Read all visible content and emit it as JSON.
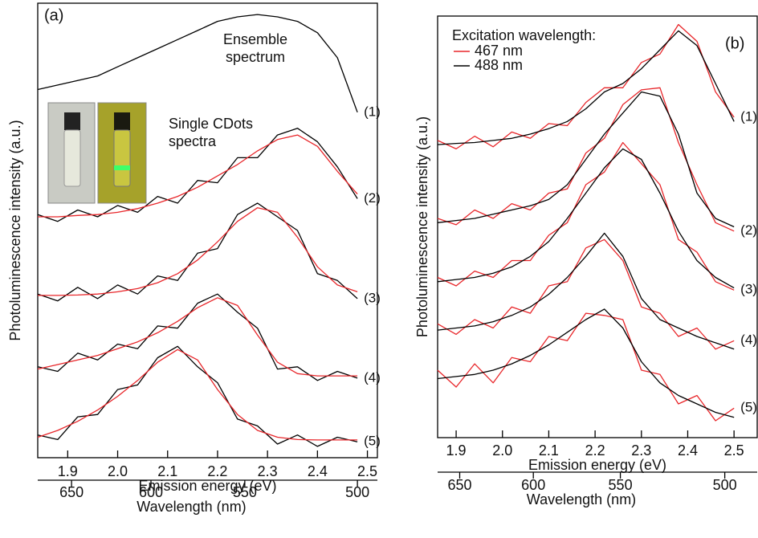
{
  "chart_data": [
    {
      "type": "line",
      "panel_label": "(a)",
      "ylabel": "Photoluminescence intensity (a.u.)",
      "xlabel": "Emission energy (eV)",
      "x2label": "Wavelength (nm)",
      "xlim": [
        1.84,
        2.52
      ],
      "xticks": [
        1.9,
        {
          "value": 2,
          "label": "2.0"
        },
        2.1,
        2.2,
        2.3,
        2.4,
        2.5
      ],
      "x2ticks": [
        650,
        600,
        550,
        500
      ],
      "ylim": [
        0,
        100
      ],
      "annotations": [
        {
          "lines": [
            "Ensemble",
            "spectrum"
          ]
        },
        {
          "lines": [
            "Single CDots",
            "spectra"
          ]
        }
      ],
      "x": [
        1.84,
        1.88,
        1.92,
        1.96,
        2.0,
        2.04,
        2.08,
        2.12,
        2.16,
        2.2,
        2.24,
        2.28,
        2.32,
        2.36,
        2.4,
        2.44,
        2.48
      ],
      "spectra": [
        {
          "label": "(1)",
          "series": [
            {
              "color": "#000000",
              "values": [
                81,
                82,
                83,
                84,
                86,
                88,
                90,
                92,
                94,
                96,
                97,
                97.5,
                97,
                96,
                93.5,
                88,
                76
              ]
            }
          ]
        },
        {
          "label": "(2)",
          "series": [
            {
              "color": "#000000",
              "values": [
                53.5,
                52,
                54.5,
                53,
                55.5,
                54,
                57.5,
                56,
                61,
                60.5,
                66,
                66,
                71,
                72.5,
                69.5,
                64,
                57
              ]
            },
            {
              "color": "#e8262a",
              "values": [
                53,
                53,
                53.3,
                53.5,
                54,
                54.8,
                56,
                57.5,
                59.5,
                62,
                64.5,
                67.5,
                70,
                71,
                68.5,
                63,
                58
              ]
            }
          ]
        },
        {
          "label": "(3)",
          "series": [
            {
              "color": "#000000",
              "values": [
                36,
                34.5,
                37.5,
                35,
                38,
                36,
                40,
                39,
                45,
                46,
                53.5,
                56,
                53,
                50,
                40.5,
                39,
                35
              ]
            },
            {
              "color": "#e8262a",
              "values": [
                35.7,
                35.7,
                35.8,
                36,
                36.5,
                37.2,
                38.5,
                40.5,
                43.5,
                47.5,
                52,
                55,
                54,
                48.5,
                42,
                38,
                36.5
              ]
            }
          ]
        },
        {
          "label": "(4)",
          "series": [
            {
              "color": "#000000",
              "values": [
                20,
                19,
                23,
                21.5,
                25,
                24,
                29,
                28.5,
                34,
                36,
                32,
                28.5,
                19.5,
                20,
                17,
                19,
                17.5
              ]
            },
            {
              "color": "#e8262a",
              "values": [
                19.5,
                20.5,
                21.5,
                22.5,
                24,
                25.5,
                27.5,
                30,
                33,
                35.2,
                33.5,
                27,
                21,
                18.5,
                18,
                18,
                18
              ]
            }
          ]
        },
        {
          "label": "(5)",
          "series": [
            {
              "color": "#000000",
              "values": [
                5,
                4,
                9,
                9.5,
                15,
                16,
                22,
                24.5,
                20,
                16.5,
                8.5,
                7,
                3,
                5,
                2.5,
                4.5,
                3.5
              ]
            },
            {
              "color": "#e8262a",
              "values": [
                4.5,
                6,
                8,
                10.5,
                13.5,
                17,
                21,
                23.8,
                21.5,
                15,
                9.5,
                6,
                4.5,
                4,
                3.9,
                3.9,
                3.9
              ]
            }
          ]
        }
      ]
    },
    {
      "type": "line",
      "panel_label": "(b)",
      "ylabel": "Photoluminescence intensity (a.u.)",
      "xlabel": "Emission energy (eV)",
      "x2label": "Wavelength (nm)",
      "xlim": [
        1.86,
        2.55
      ],
      "xticks": [
        1.9,
        {
          "value": 2,
          "label": "2.0"
        },
        2.1,
        2.2,
        2.3,
        2.4,
        2.5
      ],
      "x2ticks": [
        650,
        600,
        550,
        500
      ],
      "ylim": [
        0,
        100
      ],
      "legend": {
        "title": "Excitation wavelength:",
        "entries": [
          {
            "name": "467 nm",
            "color": "#e8262a"
          },
          {
            "name": "488 nm",
            "color": "#000000"
          }
        ]
      },
      "x": [
        1.86,
        1.9,
        1.94,
        1.98,
        2.02,
        2.06,
        2.1,
        2.14,
        2.18,
        2.22,
        2.26,
        2.3,
        2.34,
        2.38,
        2.42,
        2.46,
        2.5
      ],
      "spectra": [
        {
          "label": "(1)",
          "series": [
            {
              "values": [
                70.5,
                68.5,
                71.5,
                69,
                72.5,
                71,
                74.5,
                74,
                79.5,
                83,
                83,
                89,
                91,
                98,
                94,
                82,
                76
              ]
            },
            {
              "values": [
                69.5,
                69.8,
                70,
                70.5,
                71,
                72,
                73.3,
                75,
                78,
                82,
                84,
                87.5,
                92,
                96.5,
                93,
                84,
                75
              ]
            }
          ]
        },
        {
          "label": "(2)",
          "series": [
            {
              "values": [
                52,
                50.5,
                54,
                52,
                55.5,
                54,
                58,
                59,
                67.5,
                71,
                79,
                82.5,
                83,
                70,
                60,
                51,
                49
              ]
            },
            {
              "values": [
                51,
                51.5,
                52,
                53,
                54,
                55,
                56.5,
                60,
                66,
                72,
                77,
                82,
                81,
                72,
                58,
                52,
                50
              ]
            }
          ]
        },
        {
          "label": "(3)",
          "series": [
            {
              "values": [
                38,
                36,
                39.5,
                38,
                42,
                42,
                48,
                51,
                60,
                63,
                70,
                65,
                60,
                47,
                44,
                37,
                35
              ]
            },
            {
              "values": [
                37,
                37.5,
                38,
                39,
                40.5,
                43,
                46.5,
                52,
                58,
                64,
                68.5,
                66,
                58,
                49,
                42,
                38,
                35.5
              ]
            }
          ]
        },
        {
          "label": "(4)",
          "series": [
            {
              "values": [
                27,
                24.5,
                28,
                26,
                31,
                29.5,
                36,
                37,
                45,
                47,
                42,
                31,
                29.5,
                24,
                26,
                21,
                23
              ]
            },
            {
              "values": [
                25.5,
                26,
                26.5,
                27.5,
                29,
                31,
                34,
                38,
                43,
                48.5,
                43,
                33,
                28,
                26,
                24,
                22.5,
                21
              ]
            }
          ]
        },
        {
          "label": "(5)",
          "series": [
            {
              "values": [
                16,
                12,
                17.5,
                13,
                19,
                18,
                24,
                23,
                29.5,
                29,
                28,
                16,
                15,
                8,
                10,
                4,
                7
              ]
            },
            {
              "values": [
                14,
                14.5,
                15,
                16,
                17.5,
                19.5,
                22,
                25,
                28,
                30.5,
                26,
                18,
                13,
                10,
                8,
                6,
                4.8
              ]
            }
          ]
        }
      ]
    }
  ]
}
